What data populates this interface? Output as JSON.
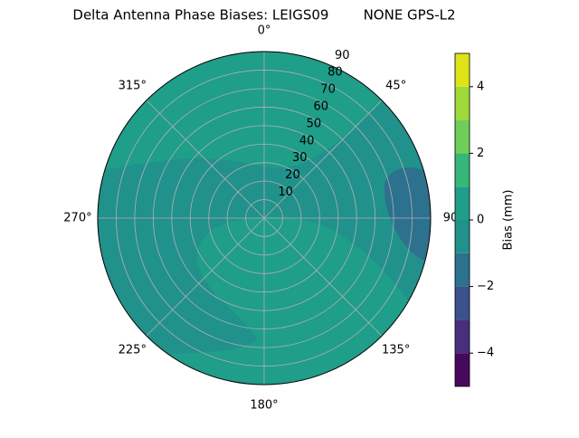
{
  "chart_data": {
    "type": "polar_contour",
    "title": "Delta Antenna Phase Biases: LEIGS09        NONE GPS-L2",
    "rlim": [
      0,
      90
    ],
    "rticks": [
      10,
      20,
      30,
      40,
      50,
      60,
      70,
      80,
      90
    ],
    "theta_labels": [
      "0°",
      "45°",
      "90",
      "135°",
      "180°",
      "225°",
      "270°",
      "315°"
    ],
    "grid": true,
    "colorbar": {
      "label": "Bias (mm)",
      "lim": [
        -5,
        5
      ],
      "levels": [
        -5,
        -4,
        -3,
        -2,
        -1,
        0,
        1,
        2,
        3,
        4,
        5
      ],
      "colors": [
        "#46085c",
        "#472f7d",
        "#3b518b",
        "#2c718e",
        "#21918c",
        "#1f9e89",
        "#35b779",
        "#6ece58",
        "#a0da39",
        "#dfe318"
      ],
      "ticks": [
        {
          "value": -4,
          "label": "−4"
        },
        {
          "value": -2,
          "label": "−2"
        },
        0,
        2,
        4
      ]
    }
  }
}
